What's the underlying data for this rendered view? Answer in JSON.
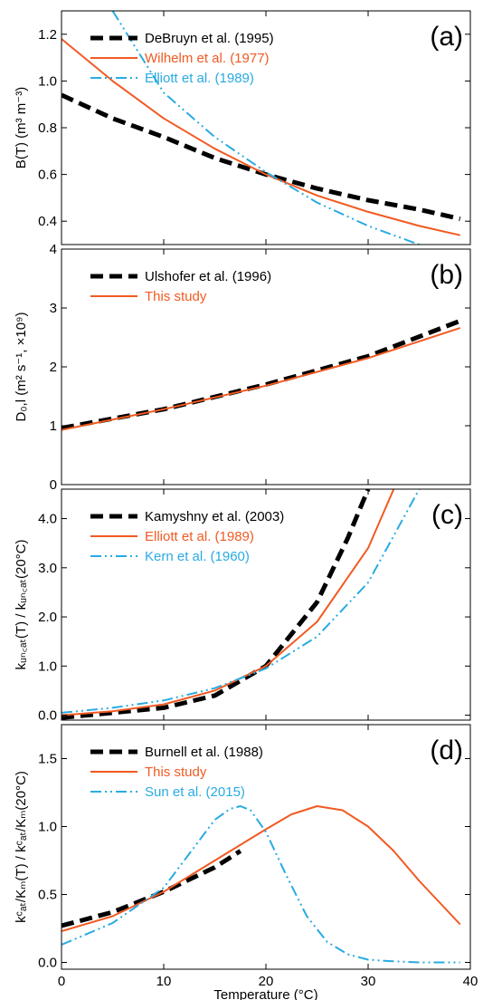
{
  "chart_data": [
    {
      "type": "line",
      "panel_label": "(a)",
      "ylabel": "B(T) (m³ m⁻³)",
      "ylim": [
        0.3,
        1.3
      ],
      "yticks": [
        0.4,
        0.6,
        0.8,
        1.0,
        1.2
      ],
      "yticklabels": [
        "0.4",
        "0.6",
        "0.8",
        "1.0",
        "1.2"
      ],
      "xlim": [
        0,
        40
      ],
      "series": [
        {
          "name": "DeBruyn et al. (1995)",
          "color": "#000000",
          "style": "dash",
          "x": [
            0,
            5,
            10,
            15,
            20,
            25,
            30,
            35,
            39
          ],
          "y": [
            0.94,
            0.84,
            0.76,
            0.67,
            0.6,
            0.54,
            0.49,
            0.45,
            0.41
          ]
        },
        {
          "name": "Wilhelm et al. (1977)",
          "color": "#f15a22",
          "style": "solid",
          "x": [
            0,
            5,
            10,
            15,
            20,
            25,
            30,
            35,
            39
          ],
          "y": [
            1.18,
            1.0,
            0.84,
            0.71,
            0.6,
            0.51,
            0.44,
            0.38,
            0.34
          ]
        },
        {
          "name": "Elliott et al. (1989)",
          "color": "#29abe2",
          "style": "dashdotdot",
          "x": [
            5,
            10,
            15,
            20,
            25,
            30,
            35
          ],
          "y": [
            1.3,
            0.95,
            0.76,
            0.61,
            0.48,
            0.38,
            0.3
          ]
        }
      ]
    },
    {
      "type": "line",
      "panel_label": "(b)",
      "ylabel": "D₀,l (m² s⁻¹, ×10⁹)",
      "ylim": [
        0,
        4
      ],
      "yticks": [
        0,
        1,
        2,
        3,
        4
      ],
      "yticklabels": [
        "0",
        "1",
        "2",
        "3",
        "4"
      ],
      "xlim": [
        0,
        40
      ],
      "series": [
        {
          "name": "Ulshofer et al. (1996)",
          "color": "#000000",
          "style": "dash",
          "x": [
            0,
            10,
            20,
            30,
            39
          ],
          "y": [
            0.96,
            1.28,
            1.7,
            2.18,
            2.78
          ]
        },
        {
          "name": "This study",
          "color": "#f15a22",
          "style": "solid",
          "x": [
            0,
            10,
            20,
            30,
            39
          ],
          "y": [
            0.93,
            1.28,
            1.68,
            2.15,
            2.66
          ]
        }
      ]
    },
    {
      "type": "line",
      "panel_label": "(c)",
      "ylabel": "kᵤₙ꜀ₐₜ(T) / kᵤₙ꜀ₐₜ(20°C)",
      "ylim": [
        -0.1,
        4.6
      ],
      "yticks": [
        0.0,
        1.0,
        2.0,
        3.0,
        4.0
      ],
      "yticklabels": [
        "0.0",
        "1.0",
        "2.0",
        "3.0",
        "4.0"
      ],
      "xlim": [
        0,
        40
      ],
      "series": [
        {
          "name": "Kamyshny et al. (2003)",
          "color": "#000000",
          "style": "dash",
          "x": [
            0,
            5,
            10,
            15,
            20,
            25,
            28,
            30
          ],
          "y": [
            -0.05,
            0.05,
            0.15,
            0.4,
            1.0,
            2.3,
            3.6,
            4.6
          ]
        },
        {
          "name": "Elliott et al. (1989)",
          "color": "#f15a22",
          "style": "solid",
          "x": [
            0,
            5,
            10,
            15,
            20,
            25,
            30,
            32.5
          ],
          "y": [
            0.0,
            0.08,
            0.22,
            0.5,
            1.0,
            1.9,
            3.4,
            4.6
          ]
        },
        {
          "name": "Kern et al. (1960)",
          "color": "#29abe2",
          "style": "dashdotdot",
          "x": [
            0,
            5,
            10,
            15,
            20,
            25,
            30,
            35
          ],
          "y": [
            0.05,
            0.15,
            0.3,
            0.55,
            0.95,
            1.6,
            2.7,
            4.6
          ]
        }
      ]
    },
    {
      "type": "line",
      "panel_label": "(d)",
      "ylabel": "kᶜₐₜ/Kₘ(T) / kᶜₐₜ/Kₘ(20°C)",
      "xlabel": "Temperature (°C)",
      "ylim": [
        -0.05,
        1.75
      ],
      "yticks": [
        0.0,
        0.5,
        1.0,
        1.5
      ],
      "yticklabels": [
        "0.0",
        "0.5",
        "1.0",
        "1.5"
      ],
      "xlim": [
        0,
        40
      ],
      "xticks": [
        0,
        10,
        20,
        30,
        40
      ],
      "xticklabels": [
        "0",
        "10",
        "20",
        "30",
        "40"
      ],
      "series": [
        {
          "name": "Burnell et al. (1988)",
          "color": "#000000",
          "style": "dash",
          "x": [
            0,
            5,
            10,
            15,
            17.5
          ],
          "y": [
            0.27,
            0.37,
            0.52,
            0.7,
            0.82
          ]
        },
        {
          "name": "This study",
          "color": "#f15a22",
          "style": "solid",
          "x": [
            0,
            5,
            10,
            15,
            20,
            22.5,
            25,
            27.5,
            30,
            32.5,
            35,
            37.5,
            39
          ],
          "y": [
            0.23,
            0.34,
            0.52,
            0.75,
            0.98,
            1.09,
            1.15,
            1.12,
            1.0,
            0.82,
            0.6,
            0.4,
            0.28
          ]
        },
        {
          "name": "Sun et al. (2015)",
          "color": "#29abe2",
          "style": "dashdotdot",
          "x": [
            0,
            5,
            10,
            12.5,
            15,
            16.5,
            17.5,
            18.5,
            20,
            22,
            24,
            26,
            28,
            30,
            32,
            35,
            39
          ],
          "y": [
            0.13,
            0.29,
            0.55,
            0.8,
            1.05,
            1.13,
            1.15,
            1.12,
            0.96,
            0.64,
            0.34,
            0.15,
            0.06,
            0.02,
            0.01,
            0.0,
            0.0
          ]
        }
      ]
    }
  ]
}
